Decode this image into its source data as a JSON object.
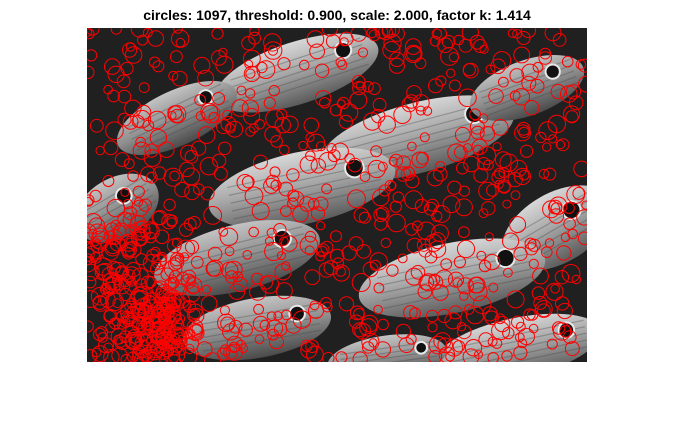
{
  "figure": {
    "title": "circles: 1097, threshold: 0.900, scale: 2.000, factor k: 1.414",
    "circle_color": "#ff0000",
    "image_description_icon": "fish-school-grayscale-photo"
  },
  "detection": {
    "circles": 1097,
    "threshold": 0.9,
    "scale": 2.0,
    "factor_k": 1.414
  }
}
